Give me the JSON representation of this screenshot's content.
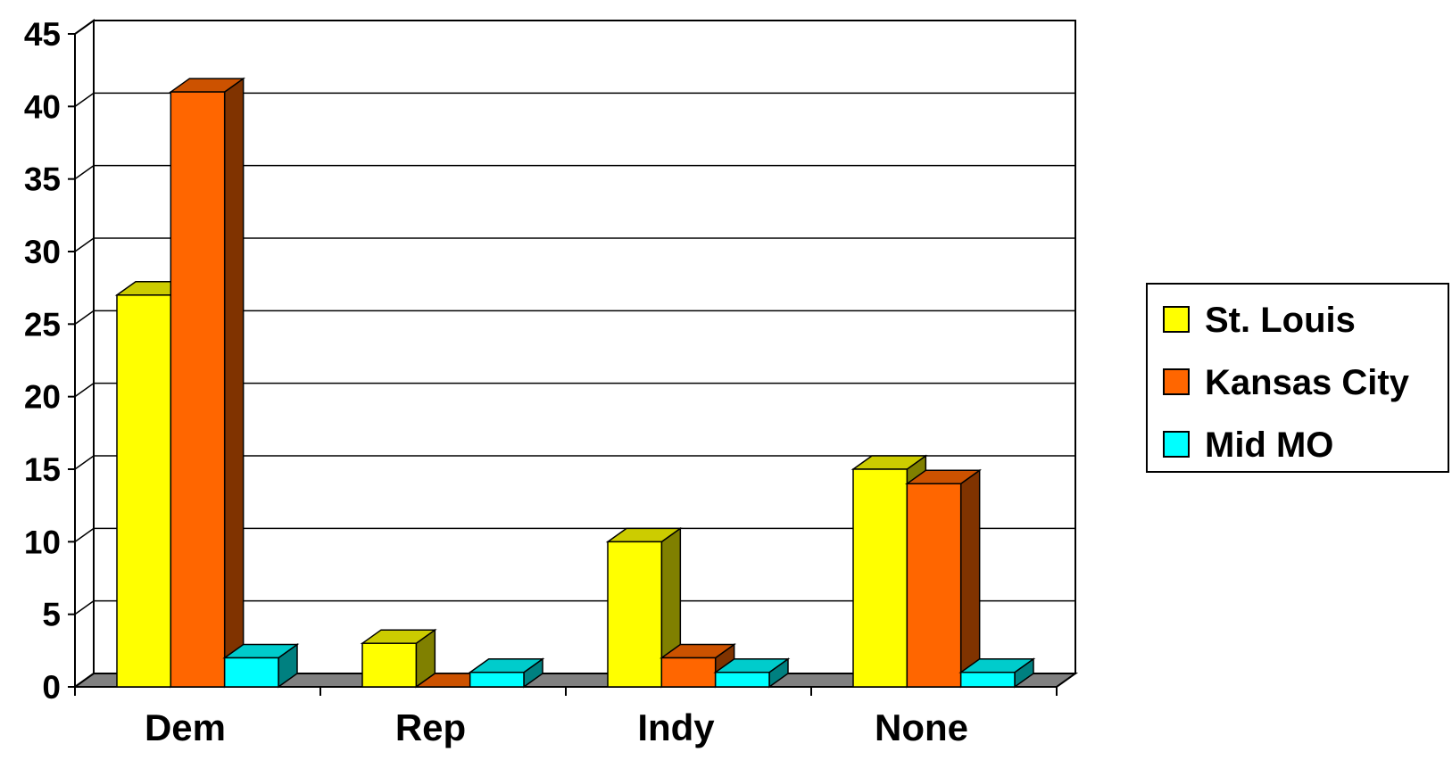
{
  "chart_data": {
    "type": "bar",
    "title": "",
    "xlabel": "",
    "ylabel": "",
    "categories": [
      "Dem",
      "Rep",
      "Indy",
      "None"
    ],
    "series": [
      {
        "name": "St. Louis",
        "values": [
          27,
          3,
          10,
          15
        ]
      },
      {
        "name": "Kansas City",
        "values": [
          41,
          0,
          2,
          14
        ]
      },
      {
        "name": "Mid MO",
        "values": [
          2,
          1,
          1,
          1
        ]
      }
    ],
    "ylim": [
      0,
      45
    ],
    "yticks": [
      "0",
      "5",
      "10",
      "15",
      "20",
      "25",
      "30",
      "35",
      "40",
      "45"
    ],
    "grid": true,
    "legend_position": "right",
    "three_d": true,
    "colors": {
      "St. Louis": {
        "front": "#FFFF00",
        "top": "#CCCC00",
        "side": "#808000"
      },
      "Kansas City": {
        "front": "#FF6600",
        "top": "#CC5200",
        "side": "#803300"
      },
      "Mid MO": {
        "front": "#00FFFF",
        "top": "#00CCCC",
        "side": "#008080"
      },
      "floor": "#808080",
      "grid": "#000000"
    }
  }
}
